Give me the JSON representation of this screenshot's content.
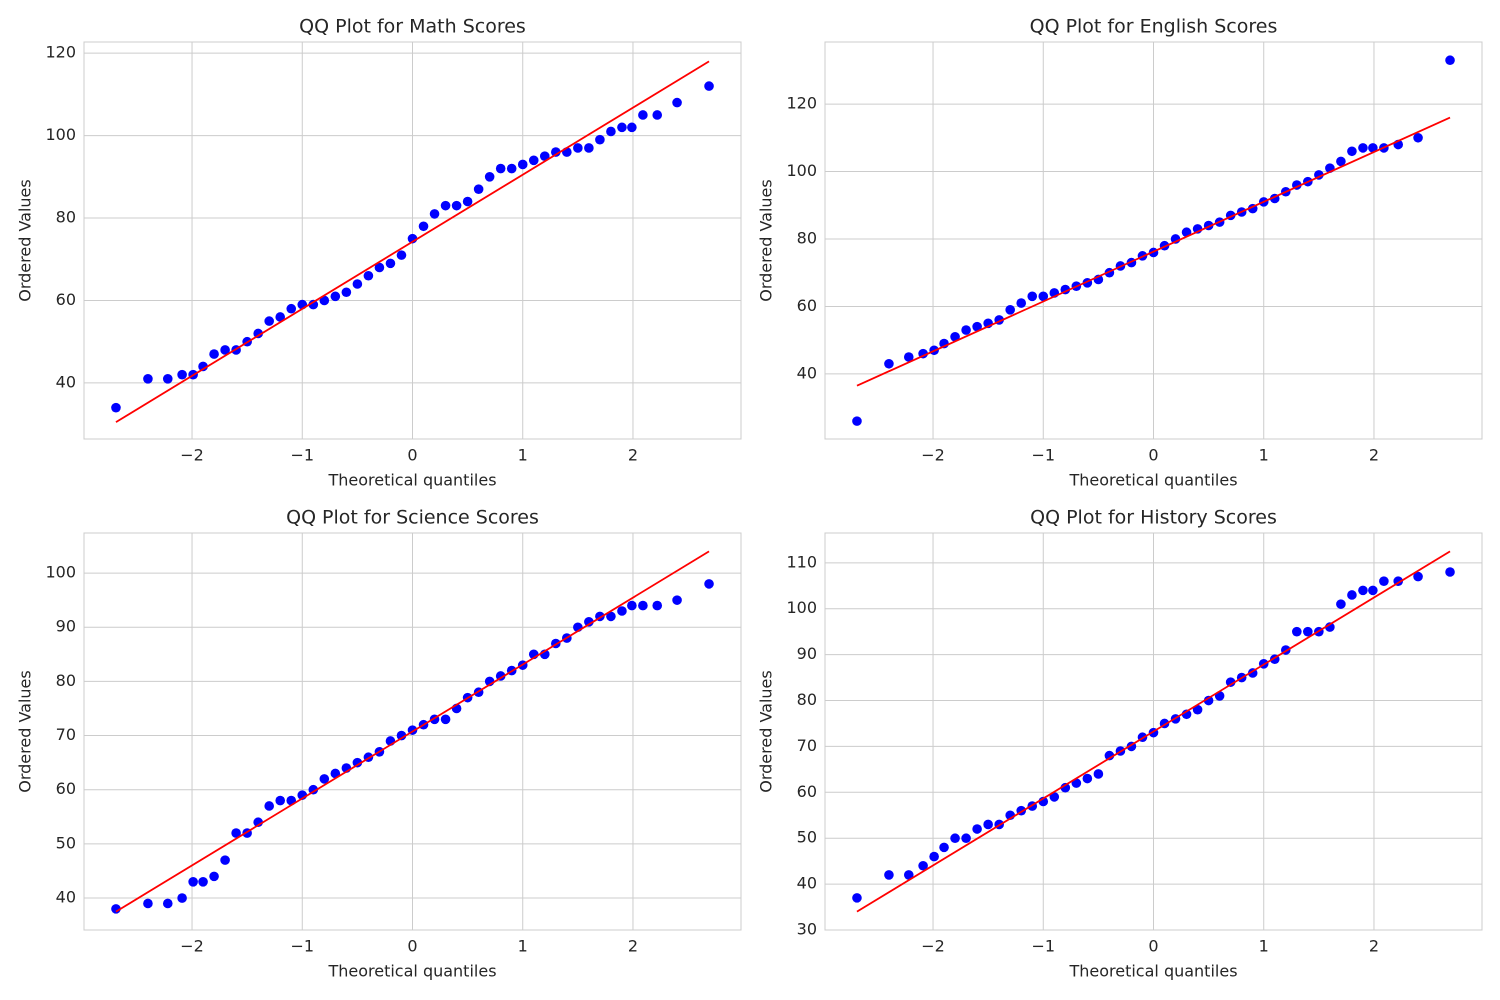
{
  "chart_data": [
    {
      "type": "scatter",
      "title": "QQ Plot for Math Scores",
      "xlabel": "Theoretical quantiles",
      "ylabel": "Ordered Values",
      "xlim": [
        -2.98,
        2.98
      ],
      "ylim": [
        26.4,
        122.7
      ],
      "grid": true,
      "xticks": [
        {
          "value": -2,
          "label": "−2"
        },
        {
          "value": -1,
          "label": "−1"
        },
        0,
        1,
        2
      ],
      "yticks": [
        40,
        60,
        80,
        100,
        120
      ],
      "series": [
        {
          "type": "scatter",
          "color": "#0000ff",
          "x": [
            -2.69,
            -2.4,
            -2.22,
            -2.09,
            -1.99,
            -1.9,
            -1.8,
            -1.7,
            -1.6,
            -1.5,
            -1.4,
            -1.3,
            -1.2,
            -1.1,
            -1.0,
            -0.9,
            -0.8,
            -0.7,
            -0.6,
            -0.5,
            -0.4,
            -0.3,
            -0.2,
            -0.1,
            0,
            0.1,
            0.2,
            0.3,
            0.4,
            0.5,
            0.6,
            0.7,
            0.8,
            0.9,
            1.0,
            1.1,
            1.2,
            1.3,
            1.4,
            1.5,
            1.6,
            1.7,
            1.8,
            1.9,
            1.99,
            2.09,
            2.22,
            2.4,
            2.69
          ],
          "values": [
            34,
            41,
            41,
            42,
            42,
            44,
            47,
            48,
            48,
            50,
            52,
            55,
            56,
            58,
            59,
            59,
            60,
            61,
            62,
            64,
            66,
            68,
            69,
            71,
            75,
            78,
            81,
            83,
            83,
            84,
            87,
            90,
            92,
            92,
            93,
            94,
            95,
            96,
            96,
            97,
            97,
            99,
            101,
            102,
            102,
            105,
            105,
            108,
            112
          ]
        },
        {
          "type": "line",
          "color": "#ff0000",
          "x": [
            -2.69,
            2.69
          ],
          "values": [
            30.5,
            118
          ]
        }
      ]
    },
    {
      "type": "scatter",
      "title": "QQ Plot for English Scores",
      "xlabel": "Theoretical quantiles",
      "ylabel": "Ordered Values",
      "xlim": [
        -2.98,
        2.98
      ],
      "ylim": [
        20.7,
        138.4
      ],
      "grid": true,
      "xticks": [
        {
          "value": -2,
          "label": "−2"
        },
        {
          "value": -1,
          "label": "−1"
        },
        0,
        1,
        2
      ],
      "yticks": [
        40,
        60,
        80,
        100,
        120
      ],
      "series": [
        {
          "type": "scatter",
          "color": "#0000ff",
          "x": [
            -2.69,
            -2.4,
            -2.22,
            -2.09,
            -1.99,
            -1.9,
            -1.8,
            -1.7,
            -1.6,
            -1.5,
            -1.4,
            -1.3,
            -1.2,
            -1.1,
            -1.0,
            -0.9,
            -0.8,
            -0.7,
            -0.6,
            -0.5,
            -0.4,
            -0.3,
            -0.2,
            -0.1,
            0,
            0.1,
            0.2,
            0.3,
            0.4,
            0.5,
            0.6,
            0.7,
            0.8,
            0.9,
            1.0,
            1.1,
            1.2,
            1.3,
            1.4,
            1.5,
            1.6,
            1.7,
            1.8,
            1.9,
            1.99,
            2.09,
            2.22,
            2.4,
            2.69
          ],
          "values": [
            26,
            43,
            45,
            46,
            47,
            49,
            51,
            53,
            54,
            55,
            56,
            59,
            61,
            63,
            63,
            64,
            65,
            66,
            67,
            68,
            70,
            72,
            73,
            75,
            76,
            78,
            80,
            82,
            83,
            84,
            85,
            87,
            88,
            89,
            91,
            92,
            94,
            96,
            97,
            99,
            101,
            103,
            106,
            107,
            107,
            107,
            108,
            110,
            133
          ]
        },
        {
          "type": "line",
          "color": "#ff0000",
          "x": [
            -2.69,
            2.69
          ],
          "values": [
            36.5,
            116
          ]
        }
      ]
    },
    {
      "type": "scatter",
      "title": "QQ Plot for Science Scores",
      "xlabel": "Theoretical quantiles",
      "ylabel": "Ordered Values",
      "xlim": [
        -2.98,
        2.98
      ],
      "ylim": [
        34.1,
        107.4
      ],
      "grid": true,
      "xticks": [
        {
          "value": -2,
          "label": "−2"
        },
        {
          "value": -1,
          "label": "−1"
        },
        0,
        1,
        2
      ],
      "yticks": [
        40,
        50,
        60,
        70,
        80,
        90,
        100
      ],
      "series": [
        {
          "type": "scatter",
          "color": "#0000ff",
          "x": [
            -2.69,
            -2.4,
            -2.22,
            -2.09,
            -1.99,
            -1.9,
            -1.8,
            -1.7,
            -1.6,
            -1.5,
            -1.4,
            -1.3,
            -1.2,
            -1.1,
            -1.0,
            -0.9,
            -0.8,
            -0.7,
            -0.6,
            -0.5,
            -0.4,
            -0.3,
            -0.2,
            -0.1,
            0,
            0.1,
            0.2,
            0.3,
            0.4,
            0.5,
            0.6,
            0.7,
            0.8,
            0.9,
            1.0,
            1.1,
            1.2,
            1.3,
            1.4,
            1.5,
            1.6,
            1.7,
            1.8,
            1.9,
            1.99,
            2.09,
            2.22,
            2.4,
            2.69
          ],
          "values": [
            38,
            39,
            39,
            40,
            43,
            43,
            44,
            47,
            52,
            52,
            54,
            57,
            58,
            58,
            59,
            60,
            62,
            63,
            64,
            65,
            66,
            67,
            69,
            70,
            71,
            72,
            73,
            73,
            75,
            77,
            78,
            80,
            81,
            82,
            83,
            85,
            85,
            87,
            88,
            90,
            91,
            92,
            92,
            93,
            94,
            94,
            94,
            95,
            98
          ]
        },
        {
          "type": "line",
          "color": "#ff0000",
          "x": [
            -2.69,
            2.69
          ],
          "values": [
            37.5,
            104
          ]
        }
      ]
    },
    {
      "type": "scatter",
      "title": "QQ Plot for History Scores",
      "xlabel": "Theoretical quantiles",
      "ylabel": "Ordered Values",
      "xlim": [
        -2.98,
        2.98
      ],
      "ylim": [
        30,
        116.5
      ],
      "grid": true,
      "xticks": [
        {
          "value": -2,
          "label": "−2"
        },
        {
          "value": -1,
          "label": "−1"
        },
        0,
        1,
        2
      ],
      "yticks": [
        30,
        40,
        50,
        60,
        70,
        80,
        90,
        100,
        110
      ],
      "series": [
        {
          "type": "scatter",
          "color": "#0000ff",
          "x": [
            -2.69,
            -2.4,
            -2.22,
            -2.09,
            -1.99,
            -1.9,
            -1.8,
            -1.7,
            -1.6,
            -1.5,
            -1.4,
            -1.3,
            -1.2,
            -1.1,
            -1.0,
            -0.9,
            -0.8,
            -0.7,
            -0.6,
            -0.5,
            -0.4,
            -0.3,
            -0.2,
            -0.1,
            0,
            0.1,
            0.2,
            0.3,
            0.4,
            0.5,
            0.6,
            0.7,
            0.8,
            0.9,
            1.0,
            1.1,
            1.2,
            1.3,
            1.4,
            1.5,
            1.6,
            1.7,
            1.8,
            1.9,
            1.99,
            2.09,
            2.22,
            2.4,
            2.69
          ],
          "values": [
            37,
            42,
            42,
            44,
            46,
            48,
            50,
            50,
            52,
            53,
            53,
            55,
            56,
            57,
            58,
            59,
            61,
            62,
            63,
            64,
            68,
            69,
            70,
            72,
            73,
            75,
            76,
            77,
            78,
            80,
            81,
            84,
            85,
            86,
            88,
            89,
            91,
            95,
            95,
            95,
            96,
            101,
            103,
            104,
            104,
            106,
            106,
            107,
            108
          ]
        },
        {
          "type": "line",
          "color": "#ff0000",
          "x": [
            -2.69,
            2.69
          ],
          "values": [
            34,
            112.5
          ]
        }
      ]
    }
  ]
}
